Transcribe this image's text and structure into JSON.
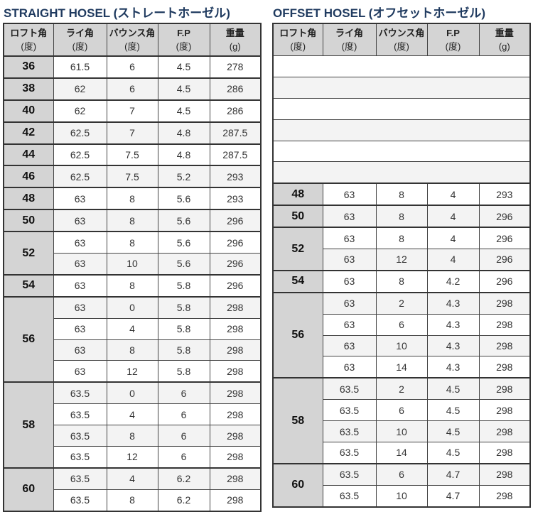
{
  "headers": [
    {
      "l1": "ロフト角",
      "l2": "(度)"
    },
    {
      "l1": "ライ角",
      "l2": "(度)"
    },
    {
      "l1": "バウンス角",
      "l2": "(度)"
    },
    {
      "l1": "F.P",
      "l2": "(度)"
    },
    {
      "l1": "重量",
      "l2": "(g)"
    }
  ],
  "straight": {
    "title": "STRAIGHT HOSEL (ストレートホーゼル)",
    "blank_rows": 0,
    "groups": [
      {
        "loft": "36",
        "rows": [
          [
            "61.5",
            "6",
            "4.5",
            "278"
          ]
        ]
      },
      {
        "loft": "38",
        "rows": [
          [
            "62",
            "6",
            "4.5",
            "286"
          ]
        ]
      },
      {
        "loft": "40",
        "rows": [
          [
            "62",
            "7",
            "4.5",
            "286"
          ]
        ]
      },
      {
        "loft": "42",
        "rows": [
          [
            "62.5",
            "7",
            "4.8",
            "287.5"
          ]
        ]
      },
      {
        "loft": "44",
        "rows": [
          [
            "62.5",
            "7.5",
            "4.8",
            "287.5"
          ]
        ]
      },
      {
        "loft": "46",
        "rows": [
          [
            "62.5",
            "7.5",
            "5.2",
            "293"
          ]
        ]
      },
      {
        "loft": "48",
        "rows": [
          [
            "63",
            "8",
            "5.6",
            "293"
          ]
        ]
      },
      {
        "loft": "50",
        "rows": [
          [
            "63",
            "8",
            "5.6",
            "296"
          ]
        ]
      },
      {
        "loft": "52",
        "rows": [
          [
            "63",
            "8",
            "5.6",
            "296"
          ],
          [
            "63",
            "10",
            "5.6",
            "296"
          ]
        ]
      },
      {
        "loft": "54",
        "rows": [
          [
            "63",
            "8",
            "5.8",
            "296"
          ]
        ]
      },
      {
        "loft": "56",
        "rows": [
          [
            "63",
            "0",
            "5.8",
            "298"
          ],
          [
            "63",
            "4",
            "5.8",
            "298"
          ],
          [
            "63",
            "8",
            "5.8",
            "298"
          ],
          [
            "63",
            "12",
            "5.8",
            "298"
          ]
        ]
      },
      {
        "loft": "58",
        "rows": [
          [
            "63.5",
            "0",
            "6",
            "298"
          ],
          [
            "63.5",
            "4",
            "6",
            "298"
          ],
          [
            "63.5",
            "8",
            "6",
            "298"
          ],
          [
            "63.5",
            "12",
            "6",
            "298"
          ]
        ]
      },
      {
        "loft": "60",
        "rows": [
          [
            "63.5",
            "4",
            "6.2",
            "298"
          ],
          [
            "63.5",
            "8",
            "6.2",
            "298"
          ]
        ]
      }
    ]
  },
  "offset": {
    "title": "OFFSET HOSEL (オフセットホーゼル)",
    "blank_rows": 6,
    "groups": [
      {
        "loft": "48",
        "rows": [
          [
            "63",
            "8",
            "4",
            "293"
          ]
        ]
      },
      {
        "loft": "50",
        "rows": [
          [
            "63",
            "8",
            "4",
            "296"
          ]
        ]
      },
      {
        "loft": "52",
        "rows": [
          [
            "63",
            "8",
            "4",
            "296"
          ],
          [
            "63",
            "12",
            "4",
            "296"
          ]
        ]
      },
      {
        "loft": "54",
        "rows": [
          [
            "63",
            "8",
            "4.2",
            "296"
          ]
        ]
      },
      {
        "loft": "56",
        "rows": [
          [
            "63",
            "2",
            "4.3",
            "298"
          ],
          [
            "63",
            "6",
            "4.3",
            "298"
          ],
          [
            "63",
            "10",
            "4.3",
            "298"
          ],
          [
            "63",
            "14",
            "4.3",
            "298"
          ]
        ]
      },
      {
        "loft": "58",
        "rows": [
          [
            "63.5",
            "2",
            "4.5",
            "298"
          ],
          [
            "63.5",
            "6",
            "4.5",
            "298"
          ],
          [
            "63.5",
            "10",
            "4.5",
            "298"
          ],
          [
            "63.5",
            "14",
            "4.5",
            "298"
          ]
        ]
      },
      {
        "loft": "60",
        "rows": [
          [
            "63.5",
            "6",
            "4.7",
            "298"
          ],
          [
            "63.5",
            "10",
            "4.7",
            "298"
          ]
        ]
      }
    ]
  }
}
